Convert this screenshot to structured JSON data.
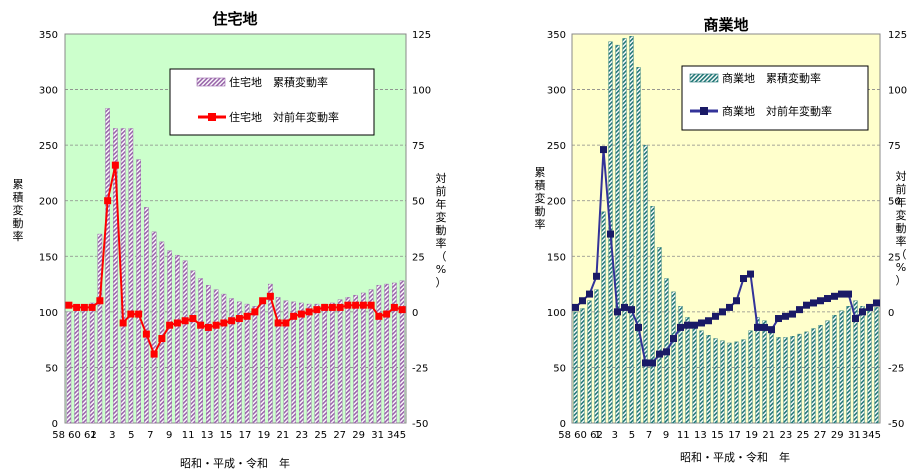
{
  "chart_data": [
    {
      "type": "bar+line",
      "title": "住宅地",
      "bg_color": "#ccffcc",
      "bar_color": "#9966aa",
      "line_color": "#ff0000",
      "marker": "square",
      "x_tick_labels": [
        "58",
        "60",
        "62",
        "1",
        "3",
        "5",
        "7",
        "9",
        "11",
        "13",
        "15",
        "17",
        "19",
        "21",
        "23",
        "25",
        "27",
        "29",
        "31",
        "3",
        "4",
        "5"
      ],
      "x_label_text": [
        "58 60 62",
        "1",
        "3",
        "5",
        "7",
        "9",
        "11",
        "13",
        "15",
        "17",
        "19",
        "21",
        "23",
        "25",
        "27",
        "29",
        "31",
        "345"
      ],
      "xlabel": "昭和・平成・令和　年",
      "ylabel_left": "累積変動率",
      "ylabel_right": "対前年変動率（%）",
      "left_axis": {
        "min": 0,
        "max": 350,
        "ticks": [
          0,
          50,
          100,
          150,
          200,
          250,
          300,
          350
        ]
      },
      "right_axis": {
        "min": -50,
        "max": 125,
        "ticks": [
          -50,
          -25,
          0,
          25,
          50,
          75,
          100,
          125
        ]
      },
      "legend": {
        "placement": "top-right",
        "bar_label": "住宅地　累積変動率",
        "line_label": "住宅地　対前年変動率"
      },
      "series": [
        {
          "name": "住宅地　累積変動率",
          "kind": "bar",
          "axis": "left",
          "values": [
            100,
            103,
            103,
            108,
            170,
            283,
            265,
            265,
            265,
            237,
            194,
            172,
            163,
            155,
            151,
            146,
            137,
            130,
            124,
            120,
            116,
            112,
            109,
            107,
            105,
            107,
            125,
            113,
            110,
            109,
            108,
            107,
            107,
            107,
            108,
            111,
            113,
            115,
            117,
            120,
            124,
            125,
            126,
            128
          ]
        },
        {
          "name": "住宅地　対前年変動率",
          "kind": "line",
          "axis": "right",
          "values": [
            3,
            2,
            2,
            2,
            5,
            50,
            66,
            -5,
            -1,
            -1,
            -10,
            -19,
            -12,
            -6,
            -5,
            -4,
            -3,
            -6,
            -7,
            -6,
            -5,
            -4,
            -3,
            -2,
            0,
            5,
            7,
            -5,
            -5,
            -2,
            -1,
            0,
            1,
            2,
            2,
            2,
            3,
            3,
            3,
            3,
            -2,
            -1,
            2,
            1
          ]
        }
      ]
    },
    {
      "type": "bar+line",
      "title": "商業地",
      "bg_color": "#ffffcc",
      "bar_color": "#227777",
      "line_color": "#333399",
      "marker": "square",
      "x_label_text": [
        "58 60 62",
        "1",
        "3",
        "5",
        "7",
        "9",
        "11",
        "13",
        "15",
        "17",
        "19",
        "21",
        "23",
        "25",
        "27",
        "29",
        "31",
        "345"
      ],
      "xlabel": "昭和・平成・令和　年",
      "ylabel_left": "累積変動率",
      "ylabel_right": "対前年変動率（%）",
      "left_axis": {
        "min": 0,
        "max": 350,
        "ticks": [
          0,
          50,
          100,
          150,
          200,
          250,
          300,
          350
        ]
      },
      "right_axis": {
        "min": -50,
        "max": 125,
        "ticks": [
          -50,
          -25,
          0,
          25,
          50,
          75,
          100,
          125
        ]
      },
      "legend": {
        "placement": "top-right",
        "bar_label": "商業地　累積変動率",
        "line_label": "商業地　対前年変動率"
      },
      "series": [
        {
          "name": "商業地　累積変動率",
          "kind": "bar",
          "axis": "left",
          "values": [
            100,
            103,
            110,
            120,
            190,
            343,
            340,
            346,
            348,
            320,
            250,
            195,
            158,
            130,
            118,
            105,
            95,
            88,
            83,
            79,
            76,
            74,
            72,
            73,
            75,
            83,
            95,
            92,
            83,
            77,
            77,
            78,
            80,
            82,
            85,
            88,
            92,
            97,
            101,
            105,
            110,
            105,
            102,
            104
          ]
        },
        {
          "name": "商業地　対前年変動率",
          "kind": "line",
          "axis": "right",
          "values": [
            2,
            5,
            8,
            16,
            73,
            35,
            0,
            2,
            1,
            -7,
            -23,
            -23,
            -19,
            -18,
            -12,
            -7,
            -6,
            -6,
            -5,
            -4,
            -2,
            0,
            2,
            5,
            15,
            17,
            -7,
            -7,
            -8,
            -3,
            -2,
            -1,
            1,
            3,
            4,
            5,
            6,
            7,
            8,
            8,
            -3,
            0,
            2,
            4
          ]
        }
      ]
    }
  ]
}
